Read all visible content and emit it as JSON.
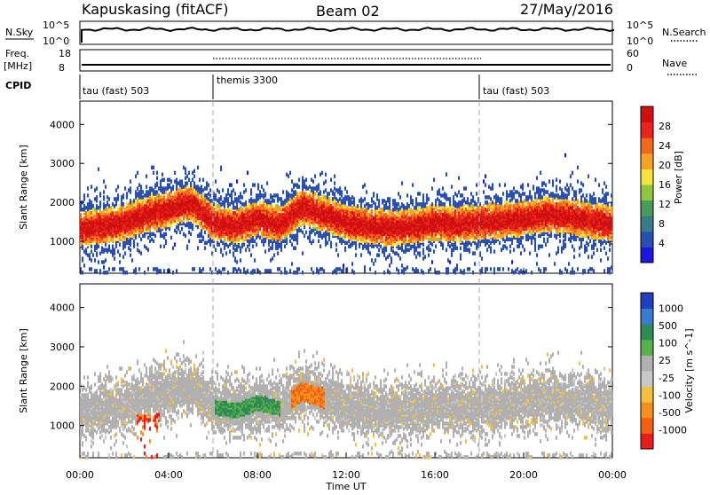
{
  "header": {
    "station": "Kapuskasing (fitACF)",
    "beam": "Beam 02",
    "date": "27/May/2016"
  },
  "top_panels": {
    "nsky_label": "N.Sky",
    "nsky_ticks": [
      "10^5",
      "10^0"
    ],
    "nsearch_label": "N.Search",
    "nsearch_ticks": [
      "10^5",
      "10^0"
    ],
    "freq_label": "Freq.",
    "freq_unit": "[MHz]",
    "freq_ticks": [
      "18",
      "8"
    ],
    "nave_label": "Nave",
    "nave_ticks": [
      "60",
      "0"
    ],
    "cpid_label": "CPID",
    "cpid_segments": [
      {
        "label": "tau (fast) 503",
        "start": 0,
        "end": 6
      },
      {
        "label": "themis 3300",
        "start": 6,
        "end": 18
      },
      {
        "label": "tau (fast) 503",
        "start": 18,
        "end": 24
      }
    ]
  },
  "time_axis": {
    "label": "Time UT",
    "ticks": [
      "00:00",
      "04:00",
      "08:00",
      "12:00",
      "16:00",
      "20:00",
      "00:00"
    ],
    "range_hours": [
      0,
      24
    ]
  },
  "chart_data": [
    {
      "type": "heatmap",
      "title": "Power",
      "ylabel": "Slant Range [km]",
      "xlabel": "",
      "yticks": [
        1000,
        2000,
        3000,
        4000
      ],
      "ylim": [
        180,
        4600
      ],
      "colorbar": {
        "label": "Power [dB]",
        "ticks": [
          "4",
          "8",
          "12",
          "16",
          "20",
          "24",
          "28"
        ],
        "colors": [
          "#1818e0",
          "#2a4fb0",
          "#3a7a8a",
          "#4a9a5a",
          "#8ec63f",
          "#f5e23a",
          "#f7a125",
          "#f06a1c",
          "#e8241c",
          "#d01010"
        ]
      },
      "band_center_km": [
        [
          0,
          1350
        ],
        [
          1,
          1400
        ],
        [
          2,
          1500
        ],
        [
          3,
          1700
        ],
        [
          4,
          1850
        ],
        [
          5,
          2000
        ],
        [
          6,
          1500
        ],
        [
          7,
          1400
        ],
        [
          8,
          1600
        ],
        [
          9,
          1450
        ],
        [
          10,
          1900
        ],
        [
          11,
          1700
        ],
        [
          12,
          1500
        ],
        [
          13,
          1400
        ],
        [
          14,
          1350
        ],
        [
          15,
          1400
        ],
        [
          16,
          1500
        ],
        [
          17,
          1450
        ],
        [
          18,
          1500
        ],
        [
          19,
          1550
        ],
        [
          20,
          1600
        ],
        [
          21,
          1700
        ],
        [
          22,
          1650
        ],
        [
          23,
          1550
        ],
        [
          24,
          1450
        ]
      ]
    },
    {
      "type": "heatmap",
      "title": "Velocity",
      "ylabel": "Slant Range [km]",
      "xlabel": "Time UT",
      "yticks": [
        1000,
        2000,
        3000,
        4000
      ],
      "ylim": [
        180,
        4600
      ],
      "colorbar": {
        "label": "Velocity [m s^-1]",
        "ticks": [
          "1000",
          "500",
          "100",
          "25",
          "-25",
          "-100",
          "-500",
          "-1000"
        ],
        "colors": [
          "#2040c0",
          "#3a7ad0",
          "#2e8b57",
          "#5ab04a",
          "#b0b0b0",
          "#c8c8c8",
          "#f5c040",
          "#f59020",
          "#f06010",
          "#e81c1c"
        ]
      },
      "band_center_km": [
        [
          0,
          1350
        ],
        [
          1,
          1400
        ],
        [
          2,
          1500
        ],
        [
          3,
          1700
        ],
        [
          4,
          1850
        ],
        [
          5,
          2000
        ],
        [
          6,
          1500
        ],
        [
          7,
          1400
        ],
        [
          8,
          1600
        ],
        [
          9,
          1450
        ],
        [
          10,
          1900
        ],
        [
          11,
          1700
        ],
        [
          12,
          1500
        ],
        [
          13,
          1400
        ],
        [
          14,
          1350
        ],
        [
          15,
          1400
        ],
        [
          16,
          1500
        ],
        [
          17,
          1450
        ],
        [
          18,
          1500
        ],
        [
          19,
          1550
        ],
        [
          20,
          1600
        ],
        [
          21,
          1700
        ],
        [
          22,
          1650
        ],
        [
          23,
          1550
        ],
        [
          24,
          1450
        ]
      ]
    }
  ]
}
